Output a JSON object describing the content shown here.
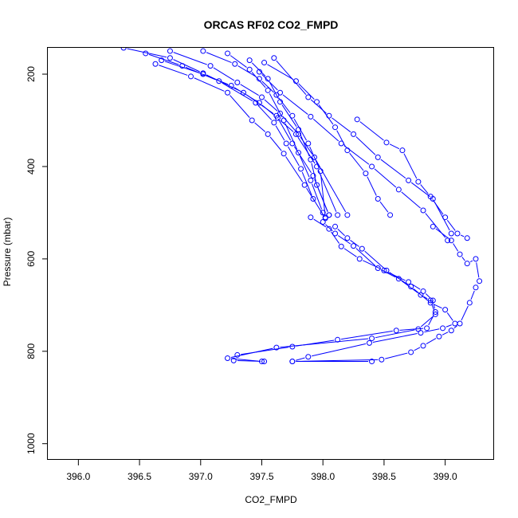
{
  "chart_data": {
    "type": "line",
    "title": "ORCAS RF02 CO2_FMPD",
    "xlabel": "CO2_FMPD",
    "ylabel": "Pressure (mbar)",
    "xlim": [
      395.75,
      399.4
    ],
    "ylim": [
      1035,
      143
    ],
    "y_reversed": true,
    "grid": false,
    "x_ticks": [
      396.0,
      396.5,
      397.0,
      397.5,
      398.0,
      398.5,
      399.0
    ],
    "x_tick_labels": [
      "396.0",
      "396.5",
      "397.0",
      "397.5",
      "398.0",
      "398.5",
      "399.0"
    ],
    "y_ticks": [
      200,
      400,
      600,
      800,
      1000
    ],
    "y_tick_labels": [
      "200",
      "400",
      "600",
      "800",
      "1000"
    ],
    "color": "#0000ff",
    "series": [
      {
        "x": [
          396.37,
          396.75,
          397.02,
          397.35,
          397.62,
          397.75,
          397.92,
          398.05
        ],
        "y": [
          143,
          165,
          198,
          240,
          290,
          350,
          420,
          505
        ]
      },
      {
        "x": [
          396.55,
          396.85,
          397.15,
          397.45,
          397.6,
          397.7,
          397.82,
          397.92
        ],
        "y": [
          155,
          182,
          215,
          262,
          305,
          350,
          405,
          470
        ]
      },
      {
        "x": [
          396.63,
          396.92,
          397.22,
          397.42,
          397.55,
          397.68,
          397.85,
          398.02
        ],
        "y": [
          178,
          205,
          240,
          300,
          330,
          372,
          440,
          512
        ]
      },
      {
        "x": [
          396.68,
          397.02,
          397.25,
          397.48,
          397.63,
          397.78,
          397.95,
          398.12
        ],
        "y": [
          170,
          200,
          225,
          262,
          295,
          330,
          400,
          505
        ]
      },
      {
        "x": [
          396.75,
          397.08,
          397.3,
          397.5,
          397.65,
          397.8,
          397.93,
          398.2
        ],
        "y": [
          150,
          182,
          218,
          250,
          285,
          330,
          380,
          505
        ]
      },
      {
        "x": [
          397.02,
          397.28,
          397.48,
          397.62,
          397.75,
          397.88,
          397.98,
          398.02
        ],
        "y": [
          150,
          178,
          210,
          245,
          290,
          350,
          410,
          510
        ]
      },
      {
        "x": [
          397.22,
          397.4,
          397.55,
          397.68,
          397.8,
          397.9,
          398.0
        ],
        "y": [
          155,
          190,
          235,
          300,
          370,
          430,
          500
        ]
      },
      {
        "x": [
          397.4,
          397.55,
          397.65,
          397.8,
          397.9,
          397.95,
          398.05
        ],
        "y": [
          170,
          210,
          260,
          320,
          385,
          440,
          505
        ]
      },
      {
        "x": [
          397.52,
          397.78,
          397.95,
          398.1,
          398.2,
          398.35,
          398.45,
          398.55
        ],
        "y": [
          175,
          215,
          260,
          315,
          365,
          415,
          470,
          505
        ]
      },
      {
        "x": [
          397.6,
          397.88,
          398.05,
          398.25,
          398.45,
          398.7,
          398.9,
          399.05
        ],
        "y": [
          165,
          250,
          290,
          330,
          380,
          430,
          470,
          545
        ]
      },
      {
        "x": [
          397.48,
          397.65,
          397.9,
          398.15,
          398.4,
          398.62,
          398.82,
          399.02
        ],
        "y": [
          195,
          240,
          292,
          350,
          400,
          450,
          495,
          560
        ]
      },
      {
        "x": [
          398.28,
          398.52,
          398.65,
          398.78,
          398.88,
          399.0,
          399.1,
          399.18
        ],
        "y": [
          298,
          348,
          365,
          433,
          465,
          510,
          545,
          555
        ]
      },
      {
        "x": [
          397.9,
          398.05,
          398.15,
          398.3,
          398.5,
          398.7,
          398.82,
          398.9,
          398.92,
          398.85,
          398.6,
          398.12,
          397.75,
          397.3,
          397.27,
          397.52
        ],
        "y": [
          510,
          535,
          573,
          600,
          625,
          650,
          670,
          690,
          715,
          750,
          755,
          775,
          790,
          808,
          820,
          822
        ]
      },
      {
        "x": [
          398.0,
          398.1,
          398.25,
          398.45,
          398.62,
          398.8,
          398.88,
          398.92,
          398.78,
          398.4,
          397.62,
          397.22,
          397.5
        ],
        "y": [
          520,
          545,
          572,
          620,
          643,
          678,
          690,
          720,
          752,
          772,
          792,
          815,
          822
        ]
      },
      {
        "x": [
          398.1,
          398.2,
          398.32,
          398.52,
          398.72,
          398.88,
          399.0,
          399.08,
          398.98,
          398.8,
          398.38,
          397.88,
          397.75,
          398.4
        ],
        "y": [
          530,
          555,
          578,
          625,
          660,
          695,
          710,
          740,
          750,
          760,
          782,
          812,
          822,
          822
        ]
      },
      {
        "x": [
          398.9,
          399.05,
          399.12,
          399.18,
          399.25,
          399.28,
          399.25,
          399.2,
          399.12,
          399.05,
          398.95,
          398.82,
          398.72,
          398.48,
          397.75
        ],
        "y": [
          530,
          560,
          590,
          610,
          600,
          648,
          662,
          695,
          740,
          755,
          768,
          788,
          802,
          818,
          822
        ]
      }
    ]
  }
}
